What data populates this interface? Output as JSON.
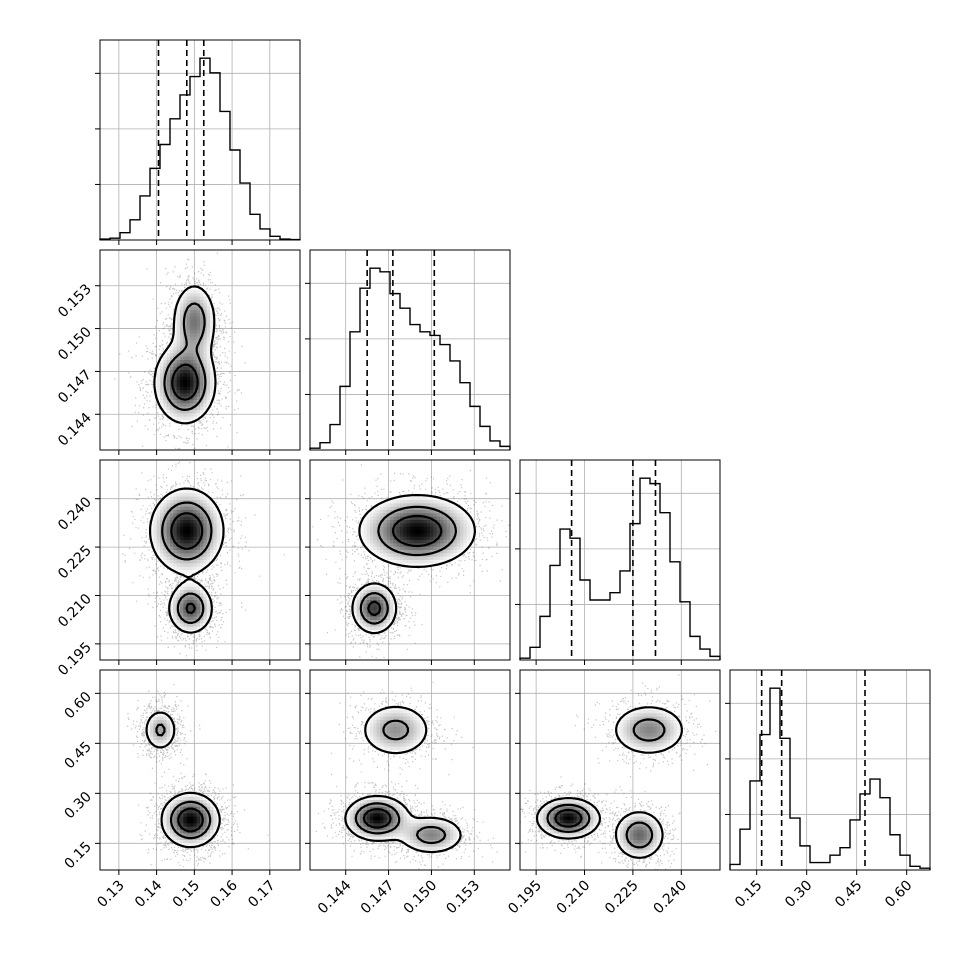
{
  "chart_data": {
    "type": "corner",
    "title": "",
    "parameters": [
      {
        "label": "",
        "range": [
          0.125,
          0.178
        ],
        "ticks": [
          0.13,
          0.14,
          0.15,
          0.16,
          0.17
        ],
        "tick_labels": [
          "0.13",
          "0.14",
          "0.15",
          "0.16",
          "0.17"
        ],
        "quantiles": [
          0.1405,
          0.148,
          0.1525
        ],
        "histogram": [
          0.005,
          0.01,
          0.04,
          0.11,
          0.24,
          0.39,
          0.52,
          0.66,
          0.79,
          0.89,
          0.99,
          0.91,
          0.7,
          0.49,
          0.31,
          0.14,
          0.06,
          0.02,
          0.005,
          0.002
        ]
      },
      {
        "label": "",
        "range": [
          0.1415,
          0.1555
        ],
        "ticks": [
          0.144,
          0.147,
          0.15,
          0.153
        ],
        "tick_labels": [
          "0.144",
          "0.147",
          "0.150",
          "0.153"
        ],
        "quantiles": [
          0.1455,
          0.1473,
          0.1502
        ],
        "histogram": [
          0.01,
          0.04,
          0.14,
          0.35,
          0.65,
          0.89,
          1.0,
          0.98,
          0.86,
          0.78,
          0.69,
          0.65,
          0.63,
          0.58,
          0.49,
          0.37,
          0.24,
          0.13,
          0.05,
          0.02
        ]
      },
      {
        "label": "",
        "range": [
          0.19,
          0.252
        ],
        "ticks": [
          0.195,
          0.21,
          0.225,
          0.24
        ],
        "tick_labels": [
          "0.195",
          "0.210",
          "0.225",
          "0.240"
        ],
        "quantiles": [
          0.206,
          0.225,
          0.232
        ],
        "histogram": [
          0.01,
          0.07,
          0.24,
          0.52,
          0.72,
          0.67,
          0.44,
          0.33,
          0.33,
          0.37,
          0.49,
          0.75,
          1.0,
          0.97,
          0.81,
          0.54,
          0.32,
          0.13,
          0.06,
          0.02
        ]
      },
      {
        "label": "",
        "range": [
          0.07,
          0.67
        ],
        "ticks": [
          0.15,
          0.3,
          0.45,
          0.6
        ],
        "tick_labels": [
          "0.15",
          "0.30",
          "0.45",
          "0.60"
        ],
        "quantiles": [
          0.165,
          0.225,
          0.475
        ],
        "histogram": [
          0.03,
          0.22,
          0.48,
          0.73,
          0.98,
          0.71,
          0.28,
          0.13,
          0.04,
          0.04,
          0.08,
          0.12,
          0.27,
          0.41,
          0.49,
          0.39,
          0.19,
          0.08,
          0.02,
          0.01
        ]
      }
    ],
    "pairs": [
      {
        "i": 1,
        "j": 0,
        "modes": [
          {
            "x": 0.1475,
            "y": 0.1462,
            "sx": 0.004,
            "sy": 0.0014,
            "w": 1.0
          },
          {
            "x": 0.15,
            "y": 0.1505,
            "sx": 0.003,
            "sy": 0.0014,
            "w": 0.6
          }
        ]
      },
      {
        "i": 2,
        "j": 0,
        "modes": [
          {
            "x": 0.148,
            "y": 0.23,
            "sx": 0.0048,
            "sy": 0.0065,
            "w": 1.0
          },
          {
            "x": 0.149,
            "y": 0.206,
            "sx": 0.003,
            "sy": 0.004,
            "w": 0.75
          }
        ]
      },
      {
        "i": 2,
        "j": 1,
        "modes": [
          {
            "x": 0.149,
            "y": 0.23,
            "sx": 0.002,
            "sy": 0.0055,
            "w": 1.0
          },
          {
            "x": 0.146,
            "y": 0.206,
            "sx": 0.0008,
            "sy": 0.004,
            "w": 0.8
          }
        ]
      },
      {
        "i": 3,
        "j": 0,
        "modes": [
          {
            "x": 0.149,
            "y": 0.22,
            "sx": 0.0038,
            "sy": 0.04,
            "w": 1.0
          },
          {
            "x": 0.141,
            "y": 0.49,
            "sx": 0.0023,
            "sy": 0.033,
            "w": 0.45
          }
        ]
      },
      {
        "i": 3,
        "j": 1,
        "modes": [
          {
            "x": 0.1462,
            "y": 0.225,
            "sx": 0.0011,
            "sy": 0.033,
            "w": 1.0
          },
          {
            "x": 0.15,
            "y": 0.175,
            "sx": 0.0012,
            "sy": 0.03,
            "w": 0.55
          },
          {
            "x": 0.1475,
            "y": 0.49,
            "sx": 0.0013,
            "sy": 0.042,
            "w": 0.5
          }
        ]
      },
      {
        "i": 3,
        "j": 2,
        "modes": [
          {
            "x": 0.205,
            "y": 0.225,
            "sx": 0.0048,
            "sy": 0.03,
            "w": 1.0
          },
          {
            "x": 0.227,
            "y": 0.175,
            "sx": 0.004,
            "sy": 0.038,
            "w": 0.65
          },
          {
            "x": 0.23,
            "y": 0.49,
            "sx": 0.006,
            "sy": 0.04,
            "w": 0.55
          }
        ]
      }
    ],
    "grid": true,
    "contour_levels": 3,
    "legend": "none"
  }
}
